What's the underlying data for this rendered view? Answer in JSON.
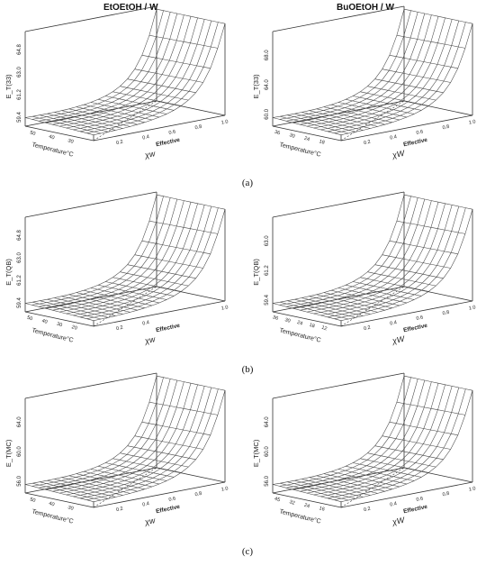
{
  "column_titles": [
    "EtOEtOH / W",
    "BuOEtOH / W"
  ],
  "row_labels": [
    "(a)",
    "(b)",
    "(c)"
  ],
  "chart_data": [
    {
      "type": "surface",
      "panel": "a-left",
      "zlabel": "E_T(33)",
      "zticks": [
        "59.4",
        "61.2",
        "63.0",
        "64.8"
      ],
      "temp_ticks": [
        "50",
        "40",
        "30"
      ],
      "temp_label": "Temperature°C",
      "x_ticks": [
        "0.2",
        "0.4",
        "0.6",
        "0.8",
        "1.0"
      ],
      "x_label_top": "Effective",
      "x_label": "χw",
      "zlim": [
        59.4,
        64.8
      ],
      "z_min": 59.6,
      "z_max": 64.6
    },
    {
      "type": "surface",
      "panel": "a-right",
      "zlabel": "E_T(33)",
      "zticks": [
        "60.0",
        "64.0",
        "68.0"
      ],
      "temp_ticks": [
        "36",
        "30",
        "24",
        "18"
      ],
      "temp_label": "Temperature°C",
      "x_ticks": [
        "0.2",
        "0.4",
        "0.6",
        "0.8",
        "1.0"
      ],
      "x_label_top": "Effective",
      "x_label": "χW",
      "zlim": [
        59.0,
        69.0
      ],
      "z_min": 60.2,
      "z_max": 68.5
    },
    {
      "type": "surface",
      "panel": "b-left",
      "zlabel": "E_T(QB)",
      "zticks": [
        "59.4",
        "61.2",
        "63.0",
        "64.8"
      ],
      "temp_ticks": [
        "50",
        "40",
        "30",
        "20"
      ],
      "temp_label": "Temperature°C",
      "x_ticks": [
        "0.2",
        "0.4",
        "1.0"
      ],
      "x_label_top": "Effective",
      "x_label": "χw",
      "zlim": [
        59.4,
        64.8
      ],
      "z_min": 59.6,
      "z_max": 64.7
    },
    {
      "type": "surface",
      "panel": "b-right",
      "zlabel": "E_T(QB)",
      "zticks": [
        "59.4",
        "61.2",
        "63.0"
      ],
      "temp_ticks": [
        "36",
        "30",
        "24",
        "18",
        "12"
      ],
      "temp_label": "Temperature°C",
      "x_ticks": [
        "0.2",
        "0.4",
        "0.6",
        "0.8",
        "1.0"
      ],
      "x_label_top": "Effective",
      "x_label": "χW",
      "zlim": [
        59.0,
        64.0
      ],
      "z_min": 59.5,
      "z_max": 63.8
    },
    {
      "type": "surface",
      "panel": "c-left",
      "zlabel": "E_T(MC)",
      "zticks": [
        "56.0",
        "60.0",
        "64.0"
      ],
      "temp_ticks": [
        "50",
        "40",
        "30"
      ],
      "temp_label": "Temperature°C",
      "x_ticks": [
        "0.2",
        "0.4",
        "0.6",
        "0.8",
        "1.0"
      ],
      "x_label_top": "Effective",
      "x_label": "χw",
      "zlim": [
        55.0,
        65.0
      ],
      "z_min": 56.0,
      "z_max": 64.5
    },
    {
      "type": "surface",
      "panel": "c-right",
      "zlabel": "E_T(MC)",
      "zticks": [
        "56.0",
        "60.0",
        "64.0"
      ],
      "temp_ticks": [
        "45",
        "32",
        "24",
        "16"
      ],
      "temp_label": "Temperature°C",
      "x_ticks": [
        "0.2",
        "0.4",
        "0.6",
        "0.8",
        "1.0"
      ],
      "x_label_top": "Effective",
      "x_label": "χW",
      "zlim": [
        55.0,
        65.0
      ],
      "z_min": 56.0,
      "z_max": 64.5
    }
  ]
}
